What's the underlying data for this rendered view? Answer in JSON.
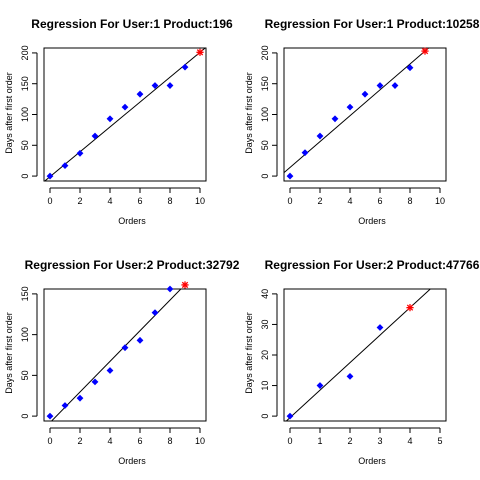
{
  "chart_data": [
    {
      "type": "scatter",
      "title": "Regression For User:1 Product:196",
      "xlabel": "Orders",
      "ylabel": "Days after first order",
      "xlim": [
        0,
        10
      ],
      "ylim": [
        0,
        200
      ],
      "xticks": [
        0,
        2,
        4,
        6,
        8,
        10
      ],
      "yticks": [
        0,
        50,
        100,
        150,
        200
      ],
      "points": [
        [
          0,
          0
        ],
        [
          1,
          17
        ],
        [
          2,
          37
        ],
        [
          3,
          65
        ],
        [
          4,
          93
        ],
        [
          5,
          112
        ],
        [
          6,
          133
        ],
        [
          7,
          147
        ],
        [
          8,
          147
        ],
        [
          9,
          177
        ]
      ],
      "predicted": [
        10,
        201
      ],
      "regression": {
        "intercept": -1,
        "slope": 20.2
      },
      "colors": {
        "points": "#0000ff",
        "predicted": "#ff0000",
        "line": "#000000"
      }
    },
    {
      "type": "scatter",
      "title": "Regression For User:1 Product:10258",
      "xlabel": "Orders",
      "ylabel": "Days after first order",
      "xlim": [
        0,
        10
      ],
      "ylim": [
        0,
        200
      ],
      "xticks": [
        0,
        2,
        4,
        6,
        8,
        10
      ],
      "yticks": [
        0,
        50,
        100,
        150,
        200
      ],
      "points": [
        [
          0,
          0
        ],
        [
          1,
          38
        ],
        [
          2,
          65
        ],
        [
          3,
          93
        ],
        [
          4,
          112
        ],
        [
          5,
          133
        ],
        [
          6,
          147
        ],
        [
          7,
          147
        ],
        [
          8,
          176
        ]
      ],
      "predicted": [
        9,
        203
      ],
      "regression": {
        "intercept": 14,
        "slope": 21
      },
      "colors": {
        "points": "#0000ff",
        "predicted": "#ff0000",
        "line": "#000000"
      }
    },
    {
      "type": "scatter",
      "title": "Regression For User:2 Product:32792",
      "xlabel": "Orders",
      "ylabel": "Days after first order",
      "xlim": [
        0,
        10
      ],
      "ylim": [
        0,
        150
      ],
      "xticks": [
        0,
        2,
        4,
        6,
        8,
        10
      ],
      "yticks": [
        0,
        50,
        100,
        150
      ],
      "points": [
        [
          0,
          0
        ],
        [
          1,
          13
        ],
        [
          2,
          22
        ],
        [
          3,
          42
        ],
        [
          4,
          56
        ],
        [
          5,
          84
        ],
        [
          6,
          93
        ],
        [
          7,
          127
        ],
        [
          8,
          156
        ]
      ],
      "predicted": [
        9,
        161
      ],
      "regression": {
        "intercept": -8,
        "slope": 18.8
      },
      "colors": {
        "points": "#0000ff",
        "predicted": "#ff0000",
        "line": "#000000"
      }
    },
    {
      "type": "scatter",
      "title": "Regression For User:2 Product:47766",
      "xlabel": "Orders",
      "ylabel": "Days after first order",
      "xlim": [
        0,
        5
      ],
      "ylim": [
        0,
        40
      ],
      "xticks": [
        0,
        1,
        2,
        3,
        4,
        5
      ],
      "yticks": [
        0,
        10,
        20,
        30,
        40
      ],
      "points": [
        [
          0,
          0
        ],
        [
          1,
          10
        ],
        [
          2,
          13
        ],
        [
          3,
          29
        ]
      ],
      "predicted": [
        4,
        35.5
      ],
      "regression": {
        "intercept": -0.5,
        "slope": 9
      },
      "colors": {
        "points": "#0000ff",
        "predicted": "#ff0000",
        "line": "#000000"
      }
    }
  ]
}
